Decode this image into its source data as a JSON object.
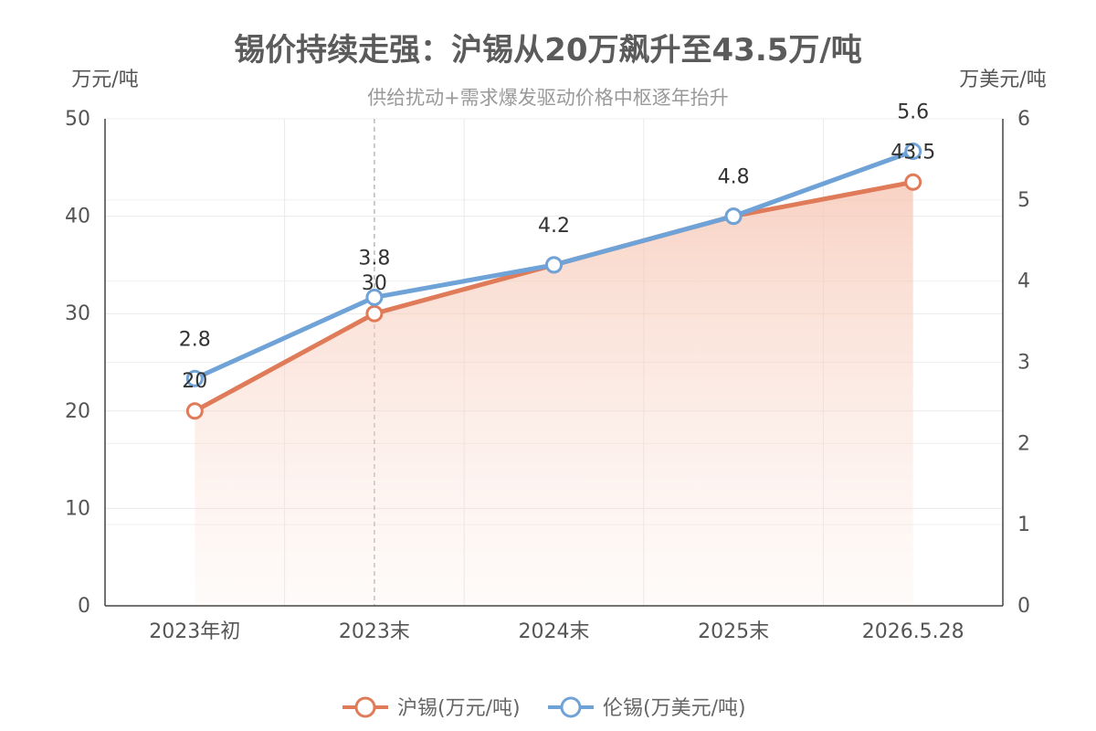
{
  "chart_data": {
    "type": "line",
    "title": "锡价持续走强：沪锡从20万飙升至43.5万/吨",
    "subtitle": "供给扰动+需求爆发驱动价格中枢逐年抬升",
    "categories": [
      "2023年初",
      "2023末",
      "2024末",
      "2025末",
      "2026.5.28"
    ],
    "y_left": {
      "label": "万元/吨",
      "range": [
        0,
        50
      ],
      "ticks": [
        0,
        10,
        20,
        30,
        40,
        50
      ]
    },
    "y_right": {
      "label": "万美元/吨",
      "range": [
        0,
        6
      ],
      "ticks": [
        0,
        1,
        2,
        3,
        4,
        5,
        6
      ]
    },
    "grid": true,
    "highlight_category": "2023末",
    "series": [
      {
        "name": "沪锡(万元/吨)",
        "axis": "left",
        "color": "#e07b59",
        "area": true,
        "values": [
          20,
          30,
          35,
          40,
          43.5
        ],
        "labels": [
          "20",
          "30",
          "",
          "",
          "43.5"
        ]
      },
      {
        "name": "伦锡(万美元/吨)",
        "axis": "right",
        "color": "#6fa3d8",
        "area": false,
        "values": [
          2.8,
          3.8,
          4.2,
          4.8,
          5.6
        ],
        "labels": [
          "2.8",
          "3.8",
          "4.2",
          "4.8",
          "5.6"
        ]
      }
    ],
    "legend_position": "bottom-center"
  }
}
